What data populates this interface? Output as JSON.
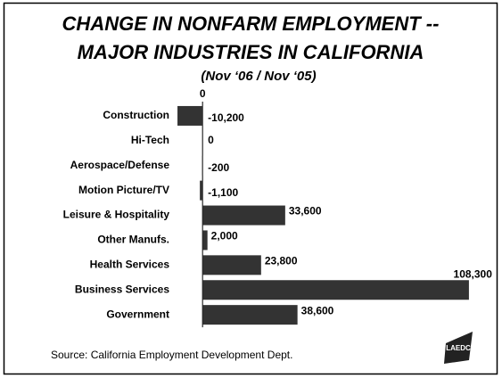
{
  "chart_data": {
    "type": "bar",
    "orientation": "horizontal",
    "title": [
      "CHANGE IN NONFARM EMPLOYMENT --",
      "MAJOR INDUSTRIES IN CALIFORNIA"
    ],
    "subtitle": "(Nov ‘06 / Nov ‘05)",
    "categories": [
      "Construction",
      "Hi-Tech",
      "Aerospace/Defense",
      "Motion Picture/TV",
      "Leisure & Hospitality",
      "Other Manufs.",
      "Health Services",
      "Business Services",
      "Government"
    ],
    "values": [
      -10200,
      0,
      -200,
      -1100,
      33600,
      2000,
      23800,
      108300,
      38600
    ],
    "value_labels": [
      "-10,200",
      "0",
      "-200",
      "-1,100",
      "33,600",
      "2,000",
      "23,800",
      "108,300",
      "38,600"
    ],
    "color": "#333333",
    "xlim": [
      -20000,
      110000
    ],
    "xticks": [
      0
    ],
    "source": "Source: California Employment Development Dept.",
    "logo": "LAEDC"
  }
}
